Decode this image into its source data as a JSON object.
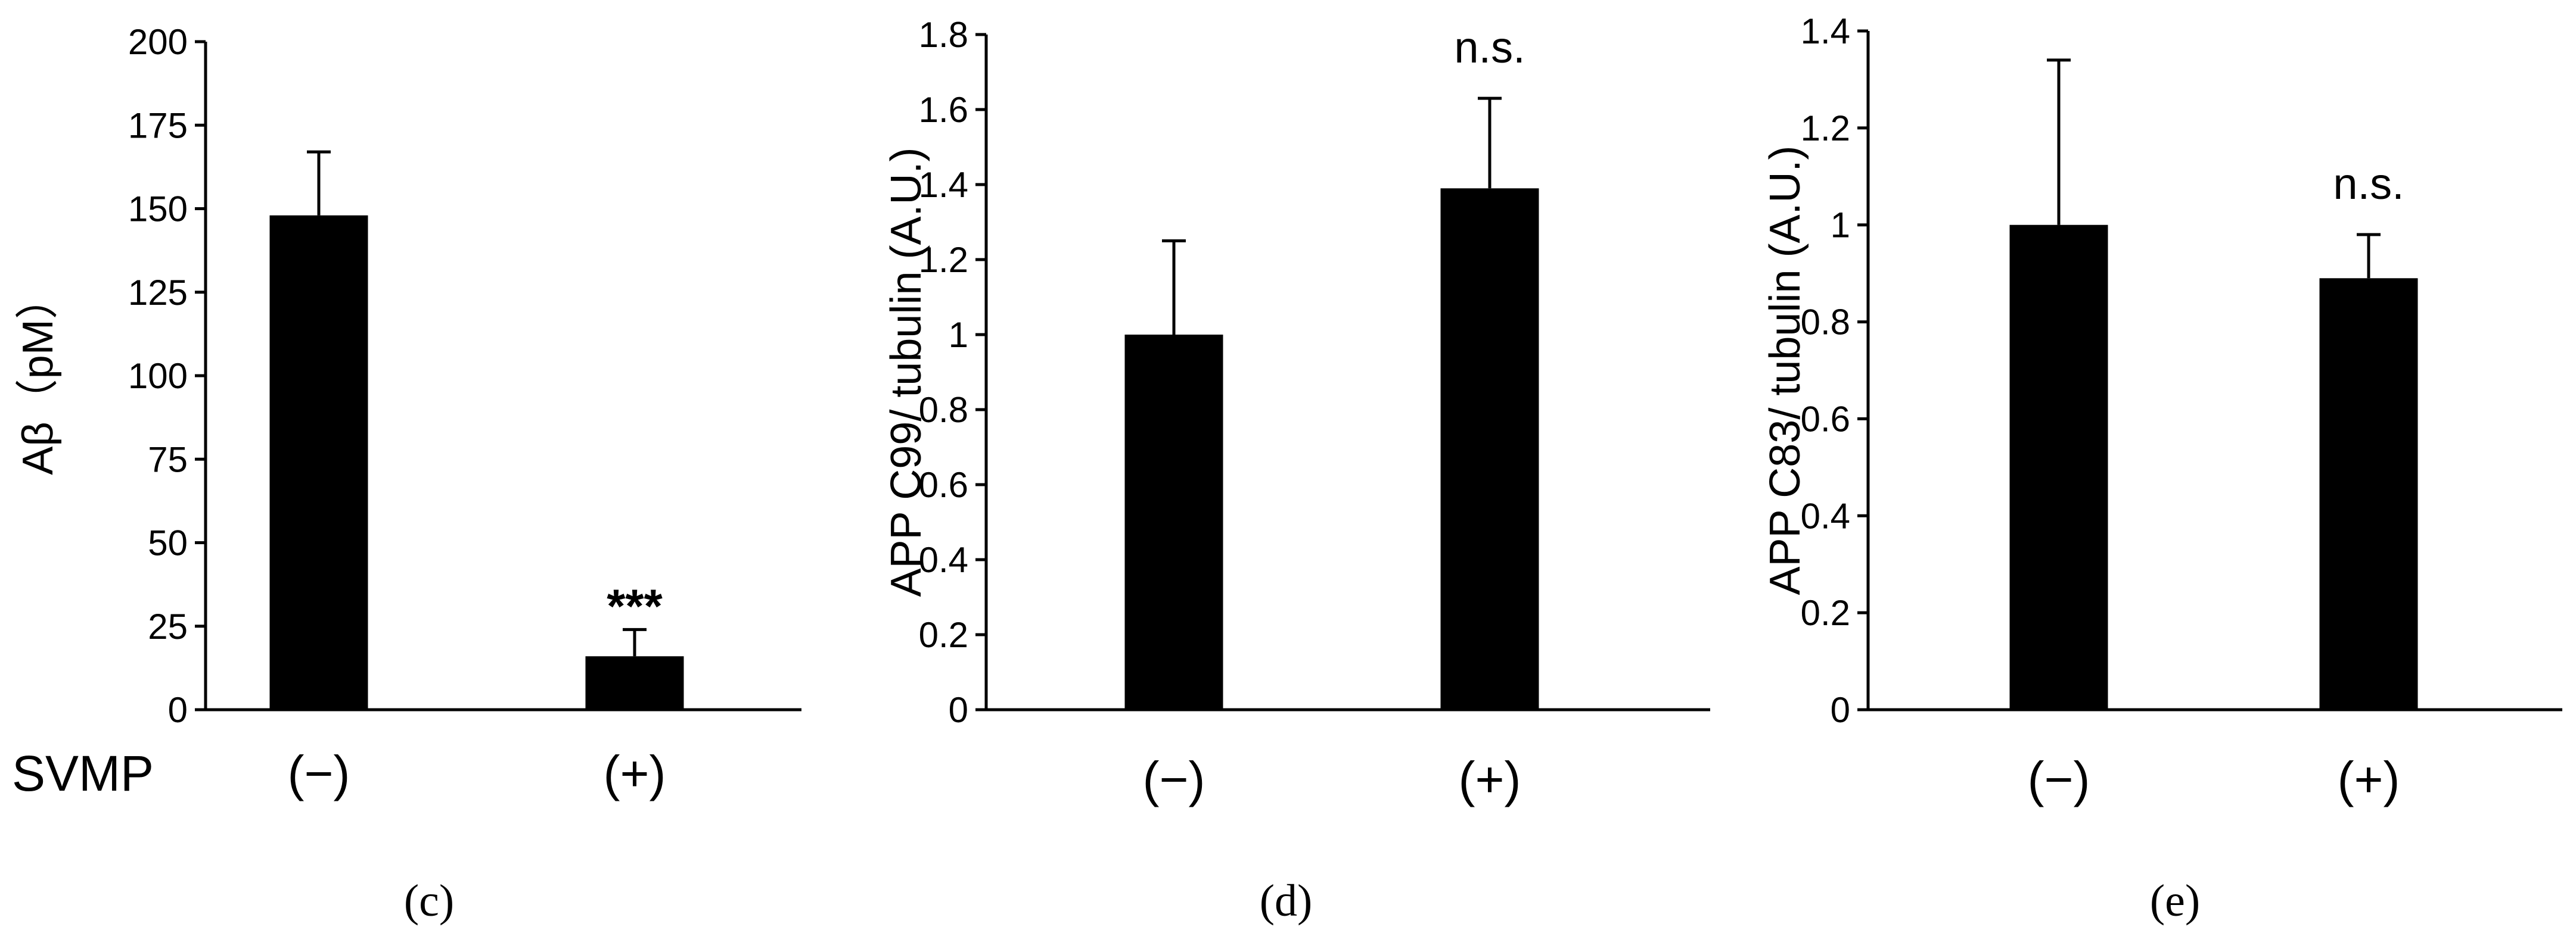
{
  "row_label": "SVMP",
  "chart_data": [
    {
      "type": "bar",
      "panel": "(c)",
      "categories": [
        "(−)",
        "(+)"
      ],
      "values": [
        148,
        16
      ],
      "errors": [
        19,
        8
      ],
      "annotations": [
        "",
        "***"
      ],
      "ylabel": "Aβ（pM）",
      "ylim": [
        0,
        200
      ],
      "yticks": [
        "0",
        "25",
        "50",
        "75",
        "100",
        "125",
        "150",
        "175",
        "200"
      ],
      "grid": false
    },
    {
      "type": "bar",
      "panel": "(d)",
      "categories": [
        "(−)",
        "(+)"
      ],
      "values": [
        1.0,
        1.39
      ],
      "errors": [
        0.25,
        0.24
      ],
      "annotations": [
        "",
        "n.s."
      ],
      "ylabel": "APP C99/ tubulin (A.U.)",
      "ylim": [
        0,
        1.8
      ],
      "yticks": [
        "0",
        "0.2",
        "0.4",
        "0.6",
        "0.8",
        "1",
        "1.2",
        "1.4",
        "1.6",
        "1.8"
      ],
      "grid": false
    },
    {
      "type": "bar",
      "panel": "(e)",
      "categories": [
        "(−)",
        "(+)"
      ],
      "values": [
        1.0,
        0.89
      ],
      "errors": [
        0.34,
        0.09
      ],
      "annotations": [
        "",
        "n.s."
      ],
      "ylabel": "APP C83/ tubulin (A.U.)",
      "ylim": [
        0,
        1.4
      ],
      "yticks": [
        "0",
        "0.2",
        "0.4",
        "0.6",
        "0.8",
        "1",
        "1.2",
        "1.4"
      ],
      "grid": false
    }
  ]
}
